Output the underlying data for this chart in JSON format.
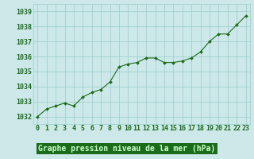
{
  "x": [
    0,
    1,
    2,
    3,
    4,
    5,
    6,
    7,
    8,
    9,
    10,
    11,
    12,
    13,
    14,
    15,
    16,
    17,
    18,
    19,
    20,
    21,
    22,
    23
  ],
  "y": [
    1032.0,
    1032.5,
    1032.7,
    1032.9,
    1032.7,
    1033.3,
    1033.6,
    1033.8,
    1034.3,
    1035.3,
    1035.5,
    1035.6,
    1035.9,
    1035.9,
    1035.6,
    1035.6,
    1035.7,
    1035.9,
    1036.3,
    1037.0,
    1037.5,
    1037.5,
    1038.1,
    1038.7
  ],
  "line_color": "#1a6b1a",
  "marker_color": "#1a6b1a",
  "bg_color": "#cce8e8",
  "grid_color": "#99cccc",
  "title": "Graphe pression niveau de la mer (hPa)",
  "title_bg": "#006600",
  "title_fg": "#ccffcc",
  "ylim_min": 1031.5,
  "ylim_max": 1039.5,
  "yticks": [
    1032,
    1033,
    1034,
    1035,
    1036,
    1037,
    1038,
    1039
  ],
  "title_color": "#1a6b1a",
  "title_fontsize": 7,
  "tick_fontsize": 6
}
